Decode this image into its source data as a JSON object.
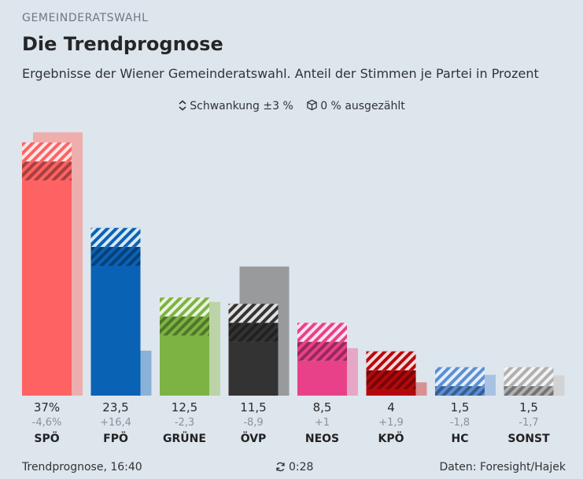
{
  "header": {
    "kicker": "GEMEINDERATSWAHL",
    "title": "Die Trendprognose",
    "subtitle": "Ergebnisse der Wiener Gemeinderatswahl. Anteil der Stimmen je Partei in Prozent"
  },
  "legend": {
    "fluctuation_label": "Schwankung ±3 %",
    "counted_label": "0 % ausgezählt",
    "fluctuation_icon": "up-down-chevron-icon",
    "counted_icon": "box-icon"
  },
  "footer": {
    "left": "Trendprognose, 16:40",
    "refresh_icon": "refresh-icon",
    "refresh_timer": "0:28",
    "source": "Daten: Foresight/Hajek"
  },
  "chart_data": {
    "type": "bar",
    "categories": [
      "SPÖ",
      "FPÖ",
      "GRÜNE",
      "ÖVP",
      "NEOS",
      "KPÖ",
      "HC",
      "SONST"
    ],
    "values": [
      37,
      23.5,
      12.5,
      11.5,
      8.5,
      4,
      1.5,
      1.5
    ],
    "previous": [
      41.6,
      7.1,
      14.8,
      20.4,
      7.5,
      2.1,
      3.3,
      3.2
    ],
    "value_labels": [
      "37%",
      "23,5",
      "12,5",
      "11,5",
      "8,5",
      "4",
      "1,5",
      "1,5"
    ],
    "change_labels": [
      "-4,6%",
      "+16,4",
      "-2,3",
      "-8,9",
      "+1",
      "+1,9",
      "-1,8",
      "-1,7"
    ],
    "fluctuation": 3,
    "colors": [
      "#ff6262",
      "#0a62b5",
      "#7cb342",
      "#333333",
      "#e8418a",
      "#b5080c",
      "#5b8fd6",
      "#b0b0b0"
    ],
    "previous_colors": [
      "#eeaeae",
      "#8ab2d6",
      "#bcd3a8",
      "#989a9c",
      "#e6a6c6",
      "#d79192",
      "#a9c2e3",
      "#d1d3d4"
    ],
    "ylim": [
      0,
      42
    ]
  }
}
